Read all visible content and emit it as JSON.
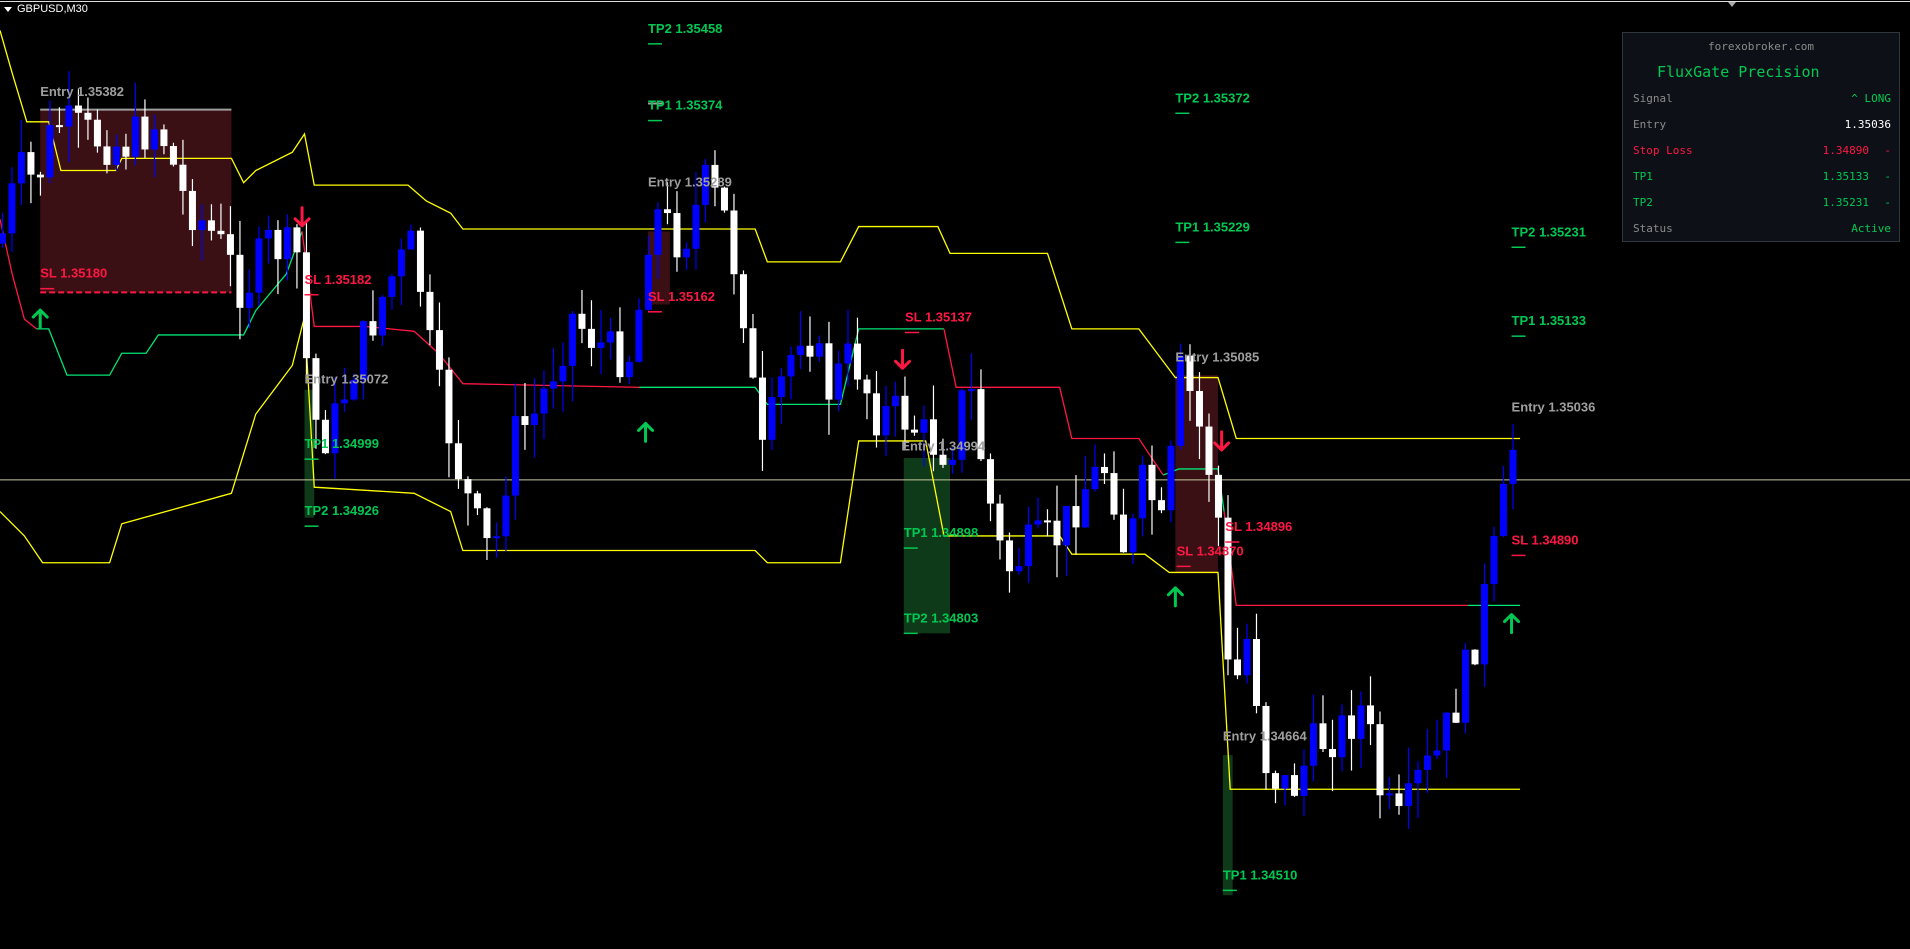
{
  "window": {
    "symbol_timeframe": "GBPUSD,M30"
  },
  "panel": {
    "site": "forexobroker.com",
    "title": "FluxGate Precision",
    "rows": [
      {
        "label": "Signal",
        "value": "^ LONG",
        "suffix": "",
        "label_color": "#8b8b8b",
        "value_color": "#00c853"
      },
      {
        "label": "Entry",
        "value": "1.35036",
        "suffix": "",
        "label_color": "#8b8b8b",
        "value_color": "#ffffff"
      },
      {
        "label": "Stop Loss",
        "value": "1.34890",
        "suffix": "-",
        "label_color": "#ff1744",
        "value_color": "#ff1744"
      },
      {
        "label": "TP1",
        "value": "1.35133",
        "suffix": "-",
        "label_color": "#00c853",
        "value_color": "#00c853"
      },
      {
        "label": "TP2",
        "value": "1.35231",
        "suffix": "-",
        "label_color": "#00c853",
        "value_color": "#00c853"
      },
      {
        "label": "Status",
        "value": "Active",
        "suffix": "",
        "label_color": "#8b8b8b",
        "value_color": "#00c853"
      }
    ]
  },
  "colors": {
    "bull": "#0000ff",
    "bear": "#ffffff",
    "band": "#ffff00",
    "trail_up": "#00e676",
    "trail_down": "#ff1744",
    "entry": "#9e9e9e",
    "sl": "#ff1744",
    "tp": "#00c853",
    "price_line": "#c8c8a0"
  },
  "chart_data": {
    "type": "candlestick",
    "symbol": "GBPUSD",
    "timeframe": "M30",
    "levels": [
      {
        "text": "TP2 1.35458",
        "kind": "tp"
      },
      {
        "text": "TP1 1.35374",
        "kind": "tp"
      },
      {
        "text": "Entry 1.35382",
        "kind": "entry"
      },
      {
        "text": "SL 1.35180",
        "kind": "sl"
      },
      {
        "text": "SL 1.35182",
        "kind": "sl"
      },
      {
        "text": "Entry 1.35072",
        "kind": "entry"
      },
      {
        "text": "TP1 1.34999",
        "kind": "tp"
      },
      {
        "text": "TP2 1.34926",
        "kind": "tp"
      },
      {
        "text": "Entry 1.35289",
        "kind": "entry"
      },
      {
        "text": "SL 1.35162",
        "kind": "sl"
      },
      {
        "text": "SL 1.35137",
        "kind": "sl"
      },
      {
        "text": "Entry 1.34994",
        "kind": "entry"
      },
      {
        "text": "TP1 1.34898",
        "kind": "tp"
      },
      {
        "text": "TP2 1.34803",
        "kind": "tp"
      },
      {
        "text": "TP2 1.35372",
        "kind": "tp"
      },
      {
        "text": "TP1 1.35229",
        "kind": "tp"
      },
      {
        "text": "Entry 1.35085",
        "kind": "entry"
      },
      {
        "text": "SL 1.34896",
        "kind": "sl"
      },
      {
        "text": "SL 1.34870",
        "kind": "sl"
      },
      {
        "text": "Entry 1.34664",
        "kind": "entry"
      },
      {
        "text": "TP1 1.34510",
        "kind": "tp"
      },
      {
        "text": "TP2 1.35231",
        "kind": "tp"
      },
      {
        "text": "TP1 1.35133",
        "kind": "tp"
      },
      {
        "text": "Entry 1.35036",
        "kind": "entry"
      },
      {
        "text": "SL 1.34890",
        "kind": "sl"
      }
    ],
    "signals": [
      "buy",
      "sell",
      "buy",
      "sell",
      "buy",
      "sell",
      "buy"
    ]
  }
}
